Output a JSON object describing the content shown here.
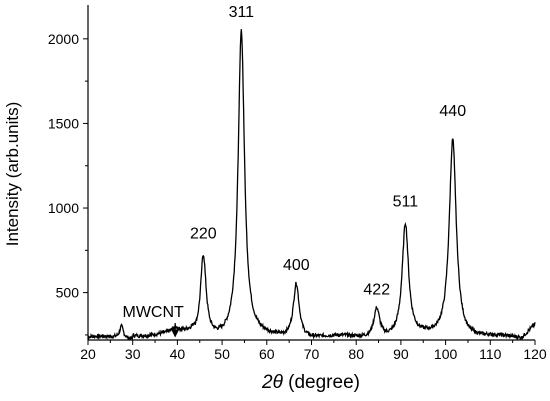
{
  "chart_data": {
    "type": "line",
    "title": "",
    "xlabel_symbol": "2θ",
    "xlabel_rest": " (degree)",
    "ylabel": "Intensity (arb.units)",
    "xlim": [
      20,
      120
    ],
    "ylim": [
      220,
      2200
    ],
    "x_ticks": [
      20,
      30,
      40,
      50,
      60,
      70,
      80,
      90,
      100,
      110,
      120
    ],
    "y_ticks": [
      500,
      1000,
      1500,
      2000
    ],
    "grid": false,
    "legend": "none",
    "line_color": "#000000",
    "background": 230,
    "peaks": [
      {
        "x": 27.5,
        "height": 70,
        "width": 0.5
      },
      {
        "x": 39.5,
        "height": 25,
        "width": 0.8
      },
      {
        "x": 45.8,
        "height": 480,
        "width": 0.75
      },
      {
        "x": 54.3,
        "height": 1810,
        "width": 0.85
      },
      {
        "x": 66.6,
        "height": 325,
        "width": 0.8
      },
      {
        "x": 84.6,
        "height": 175,
        "width": 0.8
      },
      {
        "x": 91.0,
        "height": 665,
        "width": 0.85
      },
      {
        "x": 101.6,
        "height": 1180,
        "width": 0.95
      }
    ],
    "annotations": [
      {
        "text": "220",
        "x": 45.8,
        "y": 820
      },
      {
        "text": "311",
        "x": 54.3,
        "y": 2130
      },
      {
        "text": "400",
        "x": 66.6,
        "y": 635
      },
      {
        "text": "422",
        "x": 84.6,
        "y": 490
      },
      {
        "text": "511",
        "x": 91.0,
        "y": 1010
      },
      {
        "text": "440",
        "x": 101.6,
        "y": 1545
      }
    ],
    "arrow_annotation": {
      "text": "MWCNT",
      "x": 39.5,
      "y_text": 355,
      "y_from": 320,
      "y_to": 235
    }
  }
}
